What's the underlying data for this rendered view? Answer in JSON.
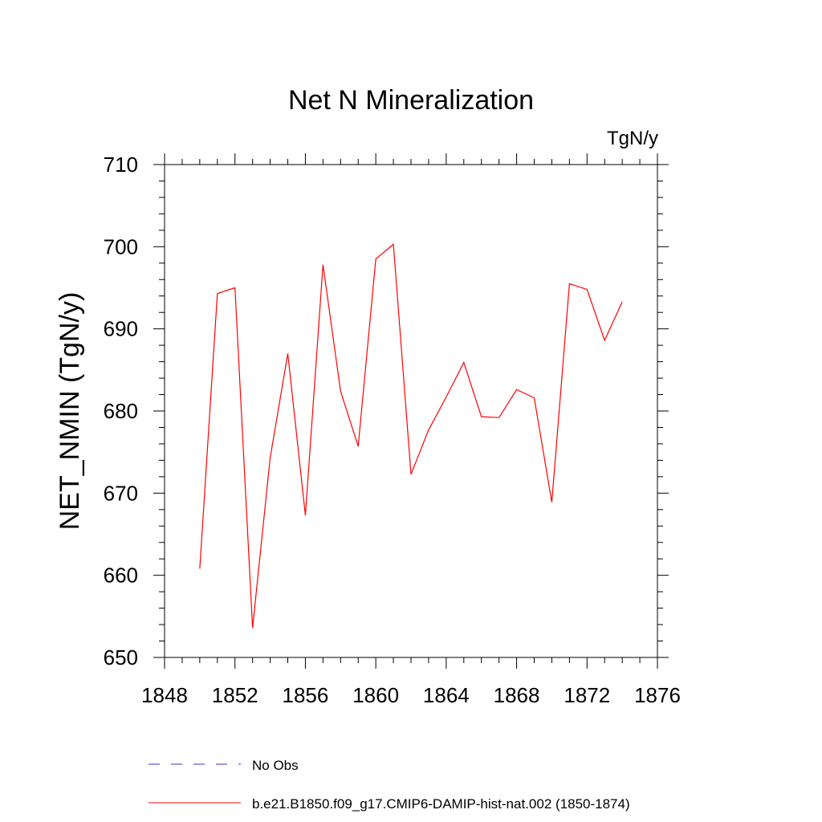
{
  "chart_data": {
    "type": "line",
    "title": "Net N Mineralization",
    "units_label": "TgN/y",
    "ylabel": "NET_NMIN  (TgN/y)",
    "xlabel": "",
    "xlim": [
      1848,
      1876
    ],
    "ylim": [
      650,
      710
    ],
    "x_ticks": [
      "1848",
      "1852",
      "1856",
      "1860",
      "1864",
      "1868",
      "1872",
      "1876"
    ],
    "y_ticks": [
      "650",
      "660",
      "670",
      "680",
      "690",
      "700",
      "710"
    ],
    "grid": false,
    "legend_placement": "bottom",
    "series": [
      {
        "name": "No Obs",
        "color": "#3333cc",
        "style": "dashed",
        "x": [],
        "values": []
      },
      {
        "name": "b.e21.B1850.f09_g17.CMIP6-DAMIP-hist-nat.002 (1850-1874)",
        "color": "#ff0000",
        "style": "solid",
        "x": [
          1850,
          1851,
          1852,
          1853,
          1854,
          1855,
          1856,
          1857,
          1858,
          1859,
          1860,
          1861,
          1862,
          1863,
          1864,
          1865,
          1866,
          1867,
          1868,
          1869,
          1870,
          1871,
          1872,
          1873,
          1874
        ],
        "values": [
          660.8,
          694.3,
          695.0,
          653.6,
          674.3,
          687.0,
          667.3,
          697.8,
          682.4,
          675.7,
          698.5,
          700.3,
          672.3,
          677.7,
          681.7,
          685.9,
          679.3,
          679.2,
          682.6,
          681.6,
          668.9,
          695.5,
          694.8,
          688.6,
          693.3
        ]
      }
    ]
  }
}
